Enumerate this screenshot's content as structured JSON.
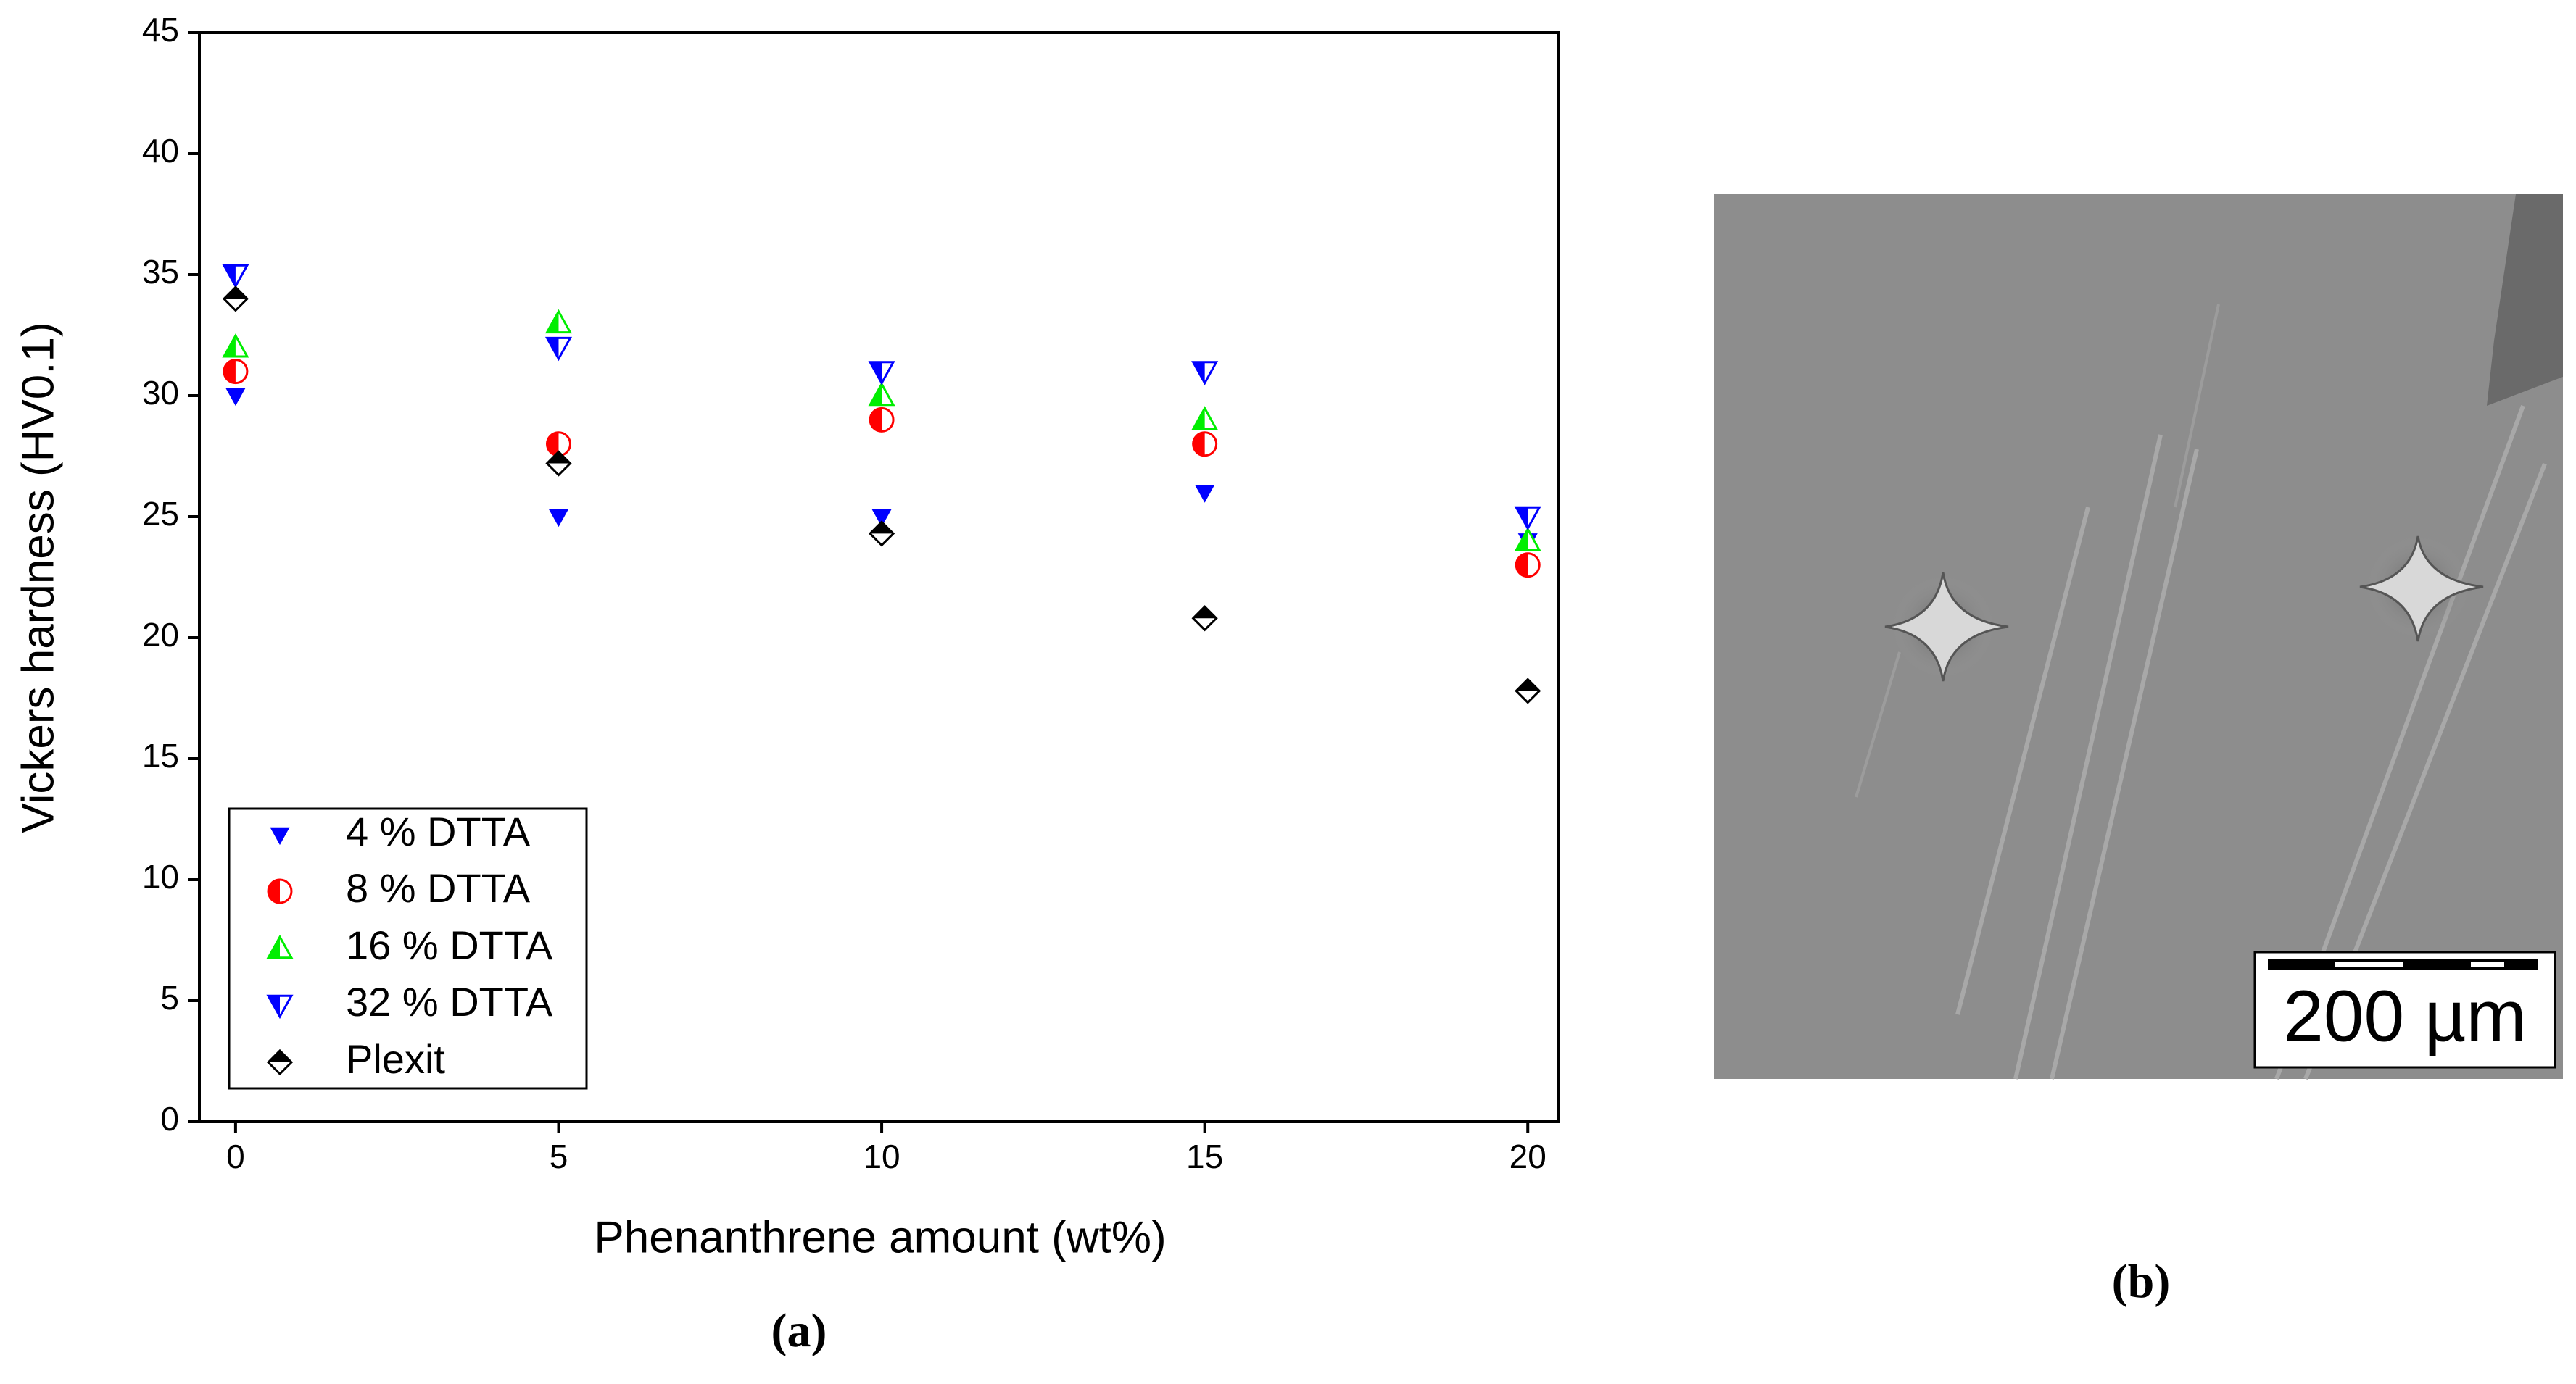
{
  "chart_data": {
    "type": "scatter",
    "xlabel": "Phenanthrene amount (wt%)",
    "ylabel": "Vickers hardness (HV0.1)",
    "x": [
      0,
      5,
      10,
      15,
      20
    ],
    "xlim": [
      -0.56,
      20.48
    ],
    "xticks": [
      0,
      5,
      10,
      15,
      20
    ],
    "ylim": [
      0,
      45
    ],
    "yticks": [
      0,
      5,
      10,
      15,
      20,
      25,
      30,
      35,
      40,
      45
    ],
    "legend": "lower left",
    "series": [
      {
        "name": "4 % DTTA",
        "color": "#0000ff",
        "marker": "triangle-down",
        "fill": "full",
        "size": "small",
        "values": [
          30,
          25,
          25,
          26,
          24
        ]
      },
      {
        "name": "8 % DTTA",
        "color": "#ff0000",
        "marker": "circle",
        "fill": "left",
        "size": "normal",
        "values": [
          31,
          28,
          29,
          28,
          23
        ]
      },
      {
        "name": "16 % DTTA",
        "color": "#00ee00",
        "marker": "triangle-up",
        "fill": "left",
        "size": "normal",
        "values": [
          32,
          33,
          30,
          29,
          24
        ]
      },
      {
        "name": "32 % DTTA",
        "color": "#0000ff",
        "marker": "triangle-down",
        "fill": "left",
        "size": "normal",
        "values": [
          35,
          32,
          31,
          31,
          25
        ]
      },
      {
        "name": "Plexit",
        "color": "#000000",
        "marker": "diamond",
        "fill": "top",
        "size": "normal",
        "values": [
          34,
          27.2,
          24.3,
          20.8,
          17.8
        ]
      }
    ]
  },
  "panels": {
    "a": "(a)",
    "b": "(b)",
    "scale_bar": "200 µm"
  }
}
